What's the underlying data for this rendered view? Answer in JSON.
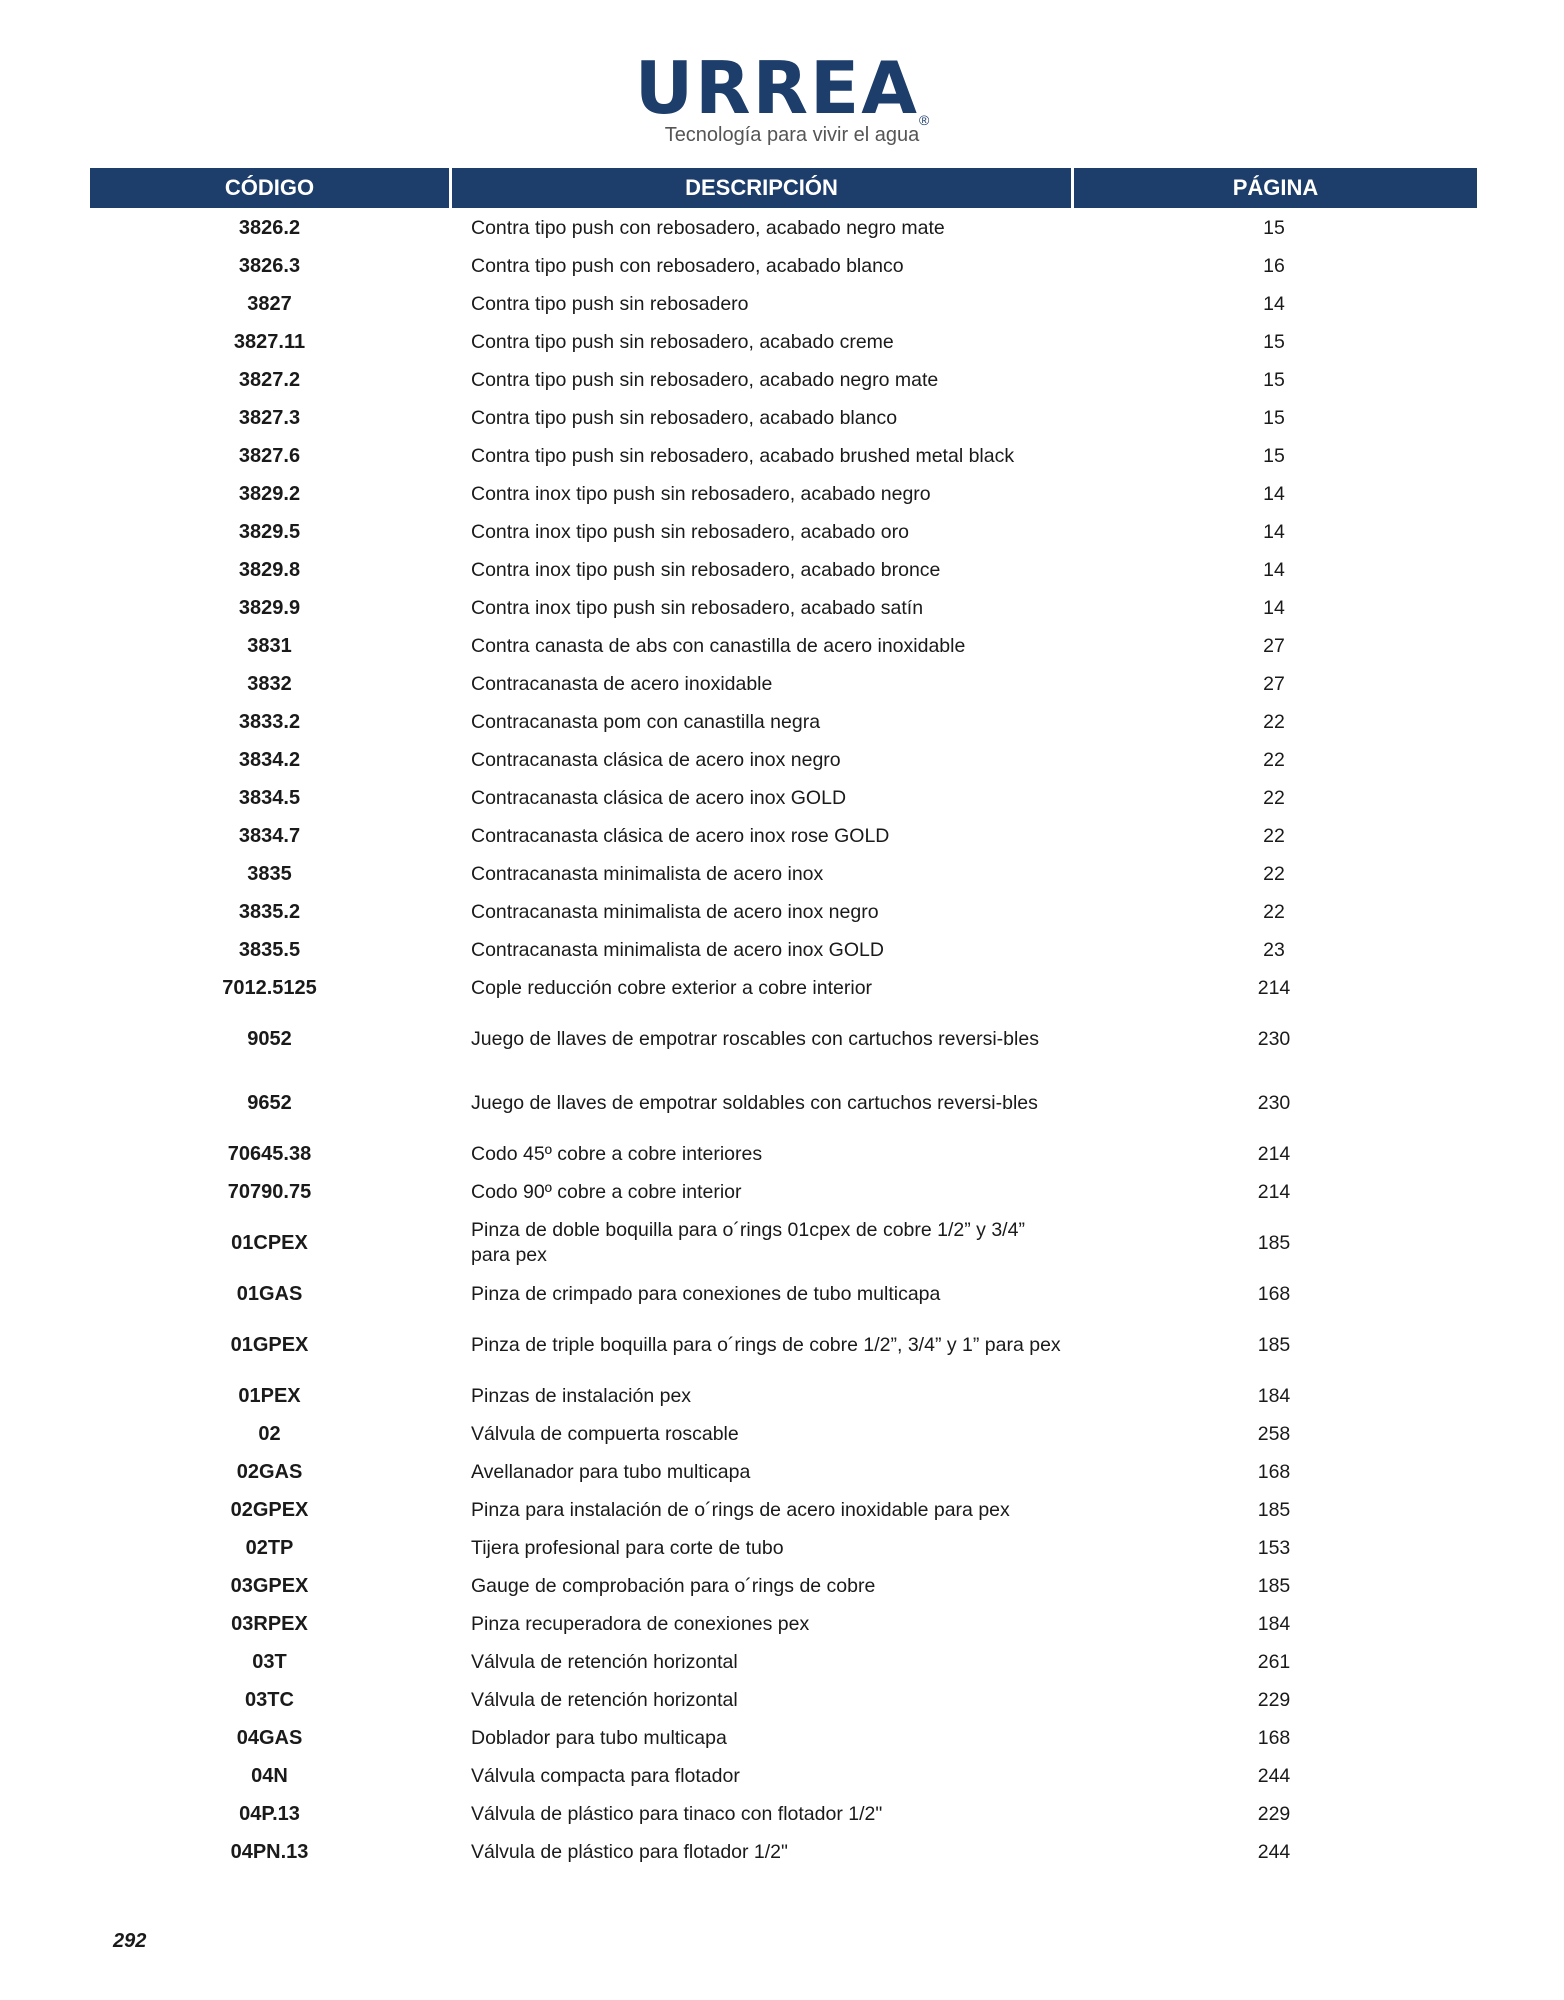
{
  "brand": {
    "name": "URREA",
    "registered": "®",
    "tagline": "Tecnología para vivir el agua",
    "color": "#1d3d6b"
  },
  "table": {
    "headers": [
      "CÓDIGO",
      "DESCRIPCIÓN",
      "PÁGINA"
    ],
    "rows": [
      {
        "code": "3826.2",
        "desc": "Contra tipo push con rebosadero, acabado negro mate",
        "page": "15"
      },
      {
        "code": "3826.3",
        "desc": "Contra tipo push con rebosadero, acabado blanco",
        "page": "16"
      },
      {
        "code": "3827",
        "desc": "Contra tipo push sin rebosadero",
        "page": "14"
      },
      {
        "code": "3827.11",
        "desc": "Contra tipo push sin rebosadero, acabado creme",
        "page": "15"
      },
      {
        "code": "3827.2",
        "desc": "Contra tipo push sin rebosadero, acabado negro mate",
        "page": "15"
      },
      {
        "code": "3827.3",
        "desc": "Contra tipo push sin rebosadero, acabado blanco",
        "page": "15"
      },
      {
        "code": "3827.6",
        "desc": "Contra tipo push sin rebosadero, acabado brushed metal black",
        "page": "15"
      },
      {
        "code": "3829.2",
        "desc": "Contra inox tipo push sin rebosadero, acabado negro",
        "page": "14"
      },
      {
        "code": "3829.5",
        "desc": "Contra inox tipo push sin rebosadero, acabado oro",
        "page": "14"
      },
      {
        "code": "3829.8",
        "desc": "Contra inox tipo push sin rebosadero, acabado bronce",
        "page": "14"
      },
      {
        "code": "3829.9",
        "desc": "Contra inox tipo push sin rebosadero, acabado satín",
        "page": "14"
      },
      {
        "code": "3831",
        "desc": "Contra canasta de abs con canastilla de acero inoxidable",
        "page": "27"
      },
      {
        "code": "3832",
        "desc": "Contracanasta de acero inoxidable",
        "page": "27"
      },
      {
        "code": "3833.2",
        "desc": "Contracanasta pom con canastilla negra",
        "page": "22"
      },
      {
        "code": "3834.2",
        "desc": "Contracanasta clásica de acero inox negro",
        "page": "22"
      },
      {
        "code": "3834.5",
        "desc": "Contracanasta clásica de acero inox GOLD",
        "page": "22"
      },
      {
        "code": "3834.7",
        "desc": "Contracanasta clásica de acero inox rose GOLD",
        "page": "22"
      },
      {
        "code": "3835",
        "desc": "Contracanasta minimalista de acero inox",
        "page": "22"
      },
      {
        "code": "3835.2",
        "desc": "Contracanasta minimalista de acero inox negro",
        "page": "22"
      },
      {
        "code": "3835.5",
        "desc": "Contracanasta minimalista de acero inox GOLD",
        "page": "23"
      },
      {
        "code": "7012.5125",
        "desc": "Cople reducción cobre exterior a cobre interior",
        "page": "214"
      },
      {
        "code": "9052",
        "desc": "Juego de llaves de empotrar roscables con cartuchos reversi-bles",
        "page": "230",
        "tall": true
      },
      {
        "code": "9652",
        "desc": "Juego de llaves de empotrar soldables con cartuchos reversi-bles",
        "page": "230",
        "tall": true
      },
      {
        "code": "70645.38",
        "desc": "Codo 45º cobre a cobre interiores",
        "page": "214"
      },
      {
        "code": "70790.75",
        "desc": "Codo 90º cobre a cobre interior",
        "page": "214"
      },
      {
        "code": "01CPEX",
        "desc": "Pinza de doble boquilla para o´rings 01cpex de cobre 1/2” y 3/4” para pex",
        "page": "185",
        "tall": true
      },
      {
        "code": "01GAS",
        "desc": "Pinza de crimpado para conexiones de tubo multicapa",
        "page": "168"
      },
      {
        "code": "01GPEX",
        "desc": "Pinza de triple boquilla para o´rings de cobre 1/2”, 3/4” y 1” para pex",
        "page": "185",
        "tall": true
      },
      {
        "code": "01PEX",
        "desc": "Pinzas de instalación pex",
        "page": "184"
      },
      {
        "code": "02",
        "desc": "Válvula de compuerta roscable",
        "page": "258"
      },
      {
        "code": "02GAS",
        "desc": "Avellanador para tubo multicapa",
        "page": "168"
      },
      {
        "code": "02GPEX",
        "desc": "Pinza para instalación de o´rings de acero inoxidable para pex",
        "page": "185"
      },
      {
        "code": "02TP",
        "desc": "Tijera profesional para corte de tubo",
        "page": "153"
      },
      {
        "code": "03GPEX",
        "desc": "Gauge de comprobación para o´rings de cobre",
        "page": "185"
      },
      {
        "code": "03RPEX",
        "desc": "Pinza recuperadora de conexiones pex",
        "page": "184"
      },
      {
        "code": "03T",
        "desc": "Válvula de retención horizontal",
        "page": "261"
      },
      {
        "code": "03TC",
        "desc": "Válvula de retención horizontal",
        "page": "229"
      },
      {
        "code": "04GAS",
        "desc": "Doblador para tubo multicapa",
        "page": "168"
      },
      {
        "code": "04N",
        "desc": "Válvula compacta para flotador",
        "page": "244"
      },
      {
        "code": "04P.13",
        "desc": "Válvula de plástico para tinaco con flotador 1/2\"",
        "page": "229"
      },
      {
        "code": "04PN.13",
        "desc": "Válvula de plástico para flotador 1/2\"",
        "page": "244"
      }
    ]
  },
  "page_number": "292"
}
